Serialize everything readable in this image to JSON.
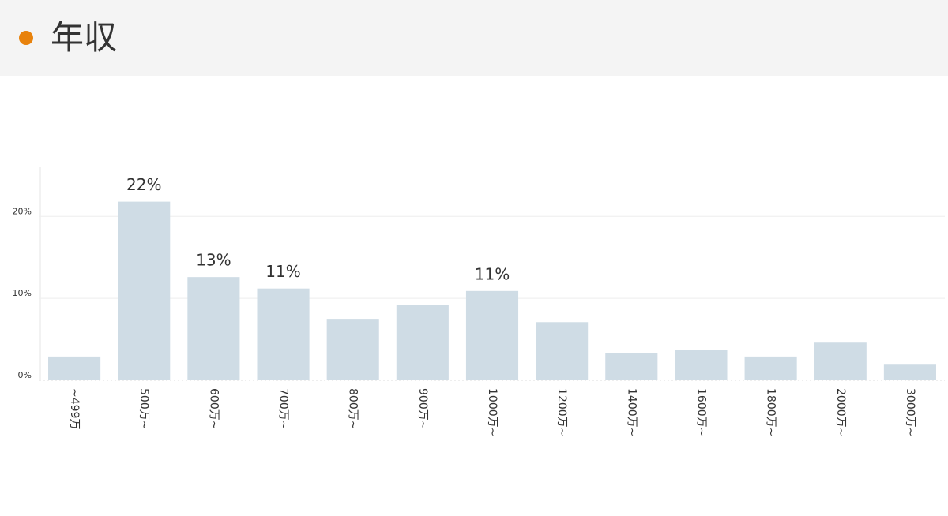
{
  "chart_data": {
    "type": "bar",
    "title": "年収",
    "categories": [
      "~499万",
      "500万~",
      "600万~",
      "700万~",
      "800万~",
      "900万~",
      "1000万~",
      "1200万~",
      "1400万~",
      "1600万~",
      "1800万~",
      "2000万~",
      "3000万~"
    ],
    "values": [
      2.9,
      21.8,
      12.6,
      11.2,
      7.5,
      9.2,
      10.9,
      7.1,
      3.3,
      3.7,
      2.9,
      4.6,
      2.0
    ],
    "value_labels": [
      null,
      "22%",
      "13%",
      "11%",
      null,
      null,
      "11%",
      null,
      null,
      null,
      null,
      null,
      null
    ],
    "color": "#cfdce5",
    "ylim": [
      0,
      26
    ],
    "yticks": [
      {
        "value": 0,
        "label": "0%"
      },
      {
        "value": 10,
        "label": "10%"
      },
      {
        "value": 20,
        "label": "20%"
      }
    ],
    "grid": true
  }
}
